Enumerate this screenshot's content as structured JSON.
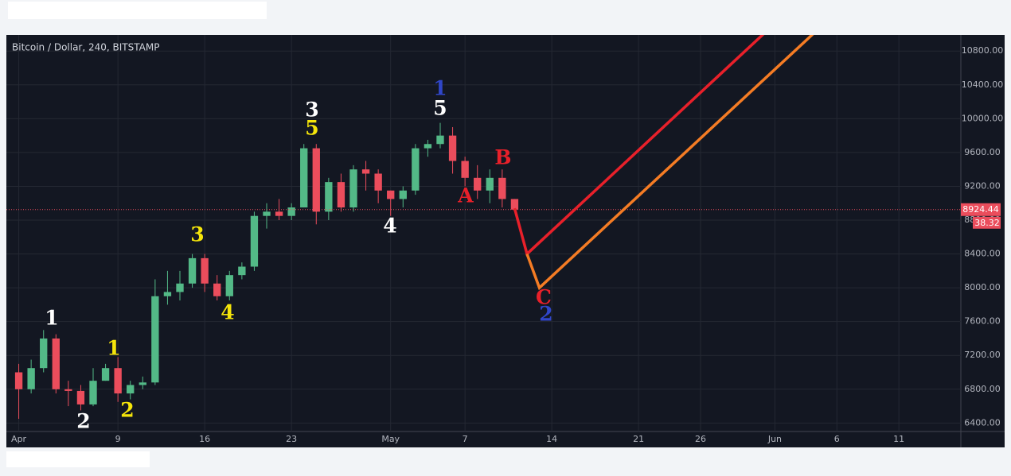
{
  "chart_data": {
    "type": "candlestick",
    "title": "Bitcoin / Dollar, 240, BITSTAMP",
    "x": [
      "Apr 1",
      "Apr 2",
      "Apr 3",
      "Apr 4",
      "Apr 5",
      "Apr 6",
      "Apr 7",
      "Apr 8",
      "Apr 9",
      "Apr 10",
      "Apr 11",
      "Apr 12",
      "Apr 13",
      "Apr 14",
      "Apr 15",
      "Apr 16",
      "Apr 17",
      "Apr 18",
      "Apr 19",
      "Apr 20",
      "Apr 21",
      "Apr 22",
      "Apr 23",
      "Apr 24",
      "Apr 25",
      "Apr 26",
      "Apr 27",
      "Apr 28",
      "Apr 29",
      "Apr 30",
      "May 1",
      "May 2",
      "May 3",
      "May 4",
      "May 5",
      "May 6",
      "May 7",
      "May 8",
      "May 9",
      "May 10",
      "May 11"
    ],
    "open": [
      7000,
      6800,
      7050,
      7400,
      6800,
      6780,
      6620,
      6900,
      7050,
      6750,
      6850,
      6880,
      7900,
      7950,
      8050,
      8350,
      8050,
      7900,
      8150,
      8250,
      8850,
      8900,
      8850,
      8950,
      9650,
      8900,
      9250,
      8950,
      9400,
      9350,
      9150,
      9050,
      9150,
      9650,
      9700,
      9800,
      9500,
      9300,
      9150,
      9300,
      9050
    ],
    "high": [
      7100,
      7150,
      7500,
      7450,
      6900,
      6850,
      7050,
      7100,
      7180,
      6900,
      6950,
      8100,
      8200,
      8200,
      8400,
      8400,
      8150,
      8200,
      8300,
      8900,
      9000,
      9050,
      9000,
      9700,
      9700,
      9300,
      9350,
      9450,
      9500,
      9400,
      9150,
      9200,
      9700,
      9750,
      9950,
      9900,
      9550,
      9450,
      9400,
      9400,
      9050
    ],
    "low": [
      6450,
      6750,
      7000,
      6750,
      6600,
      6550,
      6600,
      6900,
      6650,
      6680,
      6800,
      6850,
      7800,
      7850,
      8000,
      7950,
      7850,
      7850,
      8100,
      8200,
      8700,
      8800,
      8800,
      8950,
      8750,
      8800,
      8900,
      8900,
      9150,
      9000,
      8850,
      8950,
      9100,
      9550,
      9650,
      9350,
      9200,
      9050,
      9000,
      8950,
      8900
    ],
    "close": [
      6800,
      7050,
      7400,
      6800,
      6780,
      6620,
      6900,
      7050,
      6750,
      6850,
      6880,
      7900,
      7950,
      8050,
      8350,
      8050,
      7900,
      8150,
      8250,
      8850,
      8900,
      8850,
      8950,
      9650,
      8900,
      9250,
      8950,
      9400,
      9350,
      9150,
      9050,
      9150,
      9650,
      9700,
      9800,
      9500,
      9300,
      9150,
      9300,
      9050,
      8924.44
    ],
    "up_color": "#53b987",
    "down_color": "#eb4d5c",
    "xlim": [
      "Mar 31",
      "Jun 16"
    ],
    "xticks": [
      {
        "value": "Apr 1",
        "label": "Apr"
      },
      {
        "value": "Apr 9",
        "label": "9"
      },
      {
        "value": "Apr 16",
        "label": "16"
      },
      {
        "value": "Apr 23",
        "label": "23"
      },
      {
        "value": "May 1",
        "label": "May"
      },
      {
        "value": "May 7",
        "label": "7"
      },
      {
        "value": "May 14",
        "label": "14"
      },
      {
        "value": "May 21",
        "label": "21"
      },
      {
        "value": "May 26",
        "label": "26"
      },
      {
        "value": "Jun 1",
        "label": "Jun"
      },
      {
        "value": "Jun 6",
        "label": "6"
      },
      {
        "value": "Jun 11",
        "label": "11"
      }
    ],
    "ylim": [
      6300,
      10990
    ],
    "yticks": [
      {
        "value": 6400,
        "label": "6400.00"
      },
      {
        "value": 6800,
        "label": "6800.00"
      },
      {
        "value": 7200,
        "label": "7200.00"
      },
      {
        "value": 7600,
        "label": "7600.00"
      },
      {
        "value": 8000,
        "label": "8000.00"
      },
      {
        "value": 8400,
        "label": "8400.00"
      },
      {
        "value": 8800,
        "label": "8800.00"
      },
      {
        "value": 9200,
        "label": "9200.00"
      },
      {
        "value": 9600,
        "label": "9600.00"
      },
      {
        "value": 10000,
        "label": "10000.00"
      },
      {
        "value": 10400,
        "label": "10400.00"
      },
      {
        "value": 10800,
        "label": "10800.00"
      }
    ],
    "grid": true,
    "last_price": 8924.44,
    "countdown": "38.32",
    "drawings": [
      {
        "color": "#e8202a",
        "points": [
          [
            "May 11",
            8940
          ],
          [
            "May 12",
            8400
          ],
          [
            "Jun 3",
            11400
          ]
        ]
      },
      {
        "color": "#f57c24",
        "points": [
          [
            "May 12",
            8400
          ],
          [
            "May 13",
            8000
          ],
          [
            "Jun 7",
            11400
          ]
        ]
      }
    ],
    "annotations": [
      {
        "text": "1",
        "color": "#ffffff"
      },
      {
        "text": "2",
        "color": "#ffffff"
      },
      {
        "text": "1",
        "color": "#f5e50a"
      },
      {
        "text": "2",
        "color": "#f5e50a"
      },
      {
        "text": "3",
        "color": "#f5e50a"
      },
      {
        "text": "4",
        "color": "#f5e50a"
      },
      {
        "text": "3",
        "color": "#ffffff"
      },
      {
        "text": "5",
        "color": "#f5e50a"
      },
      {
        "text": "1",
        "color": "#3046c8"
      },
      {
        "text": "5",
        "color": "#ffffff"
      },
      {
        "text": "4",
        "color": "#ffffff"
      },
      {
        "text": "A",
        "color": "#e8202a"
      },
      {
        "text": "B",
        "color": "#e8202a"
      },
      {
        "text": "C",
        "color": "#e8202a"
      },
      {
        "text": "2",
        "color": "#3046c8"
      }
    ]
  }
}
